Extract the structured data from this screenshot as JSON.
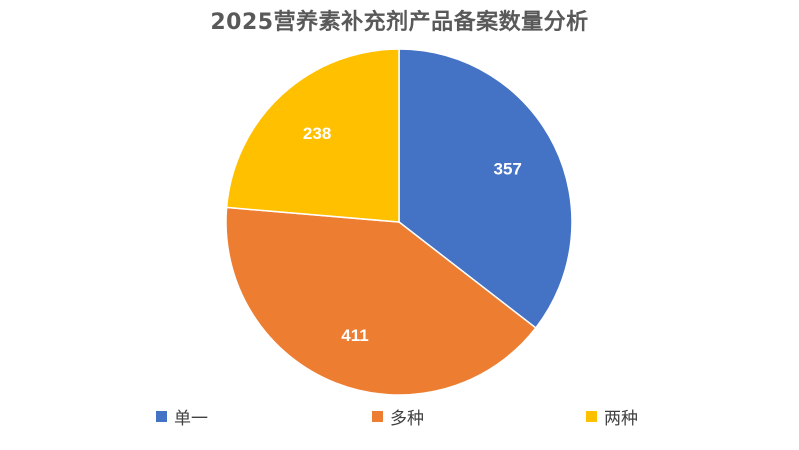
{
  "chart_data": {
    "type": "pie",
    "title": "2025营养素补充剂产品备案数量分析",
    "categories": [
      "单一",
      "多种",
      "两种"
    ],
    "values": [
      357,
      411,
      238
    ],
    "colors": [
      "#4472C4",
      "#ED7D31",
      "#FFC000"
    ],
    "start_angle_deg": 0,
    "direction": "clockwise",
    "data_labels": true,
    "legend_position": "bottom"
  }
}
